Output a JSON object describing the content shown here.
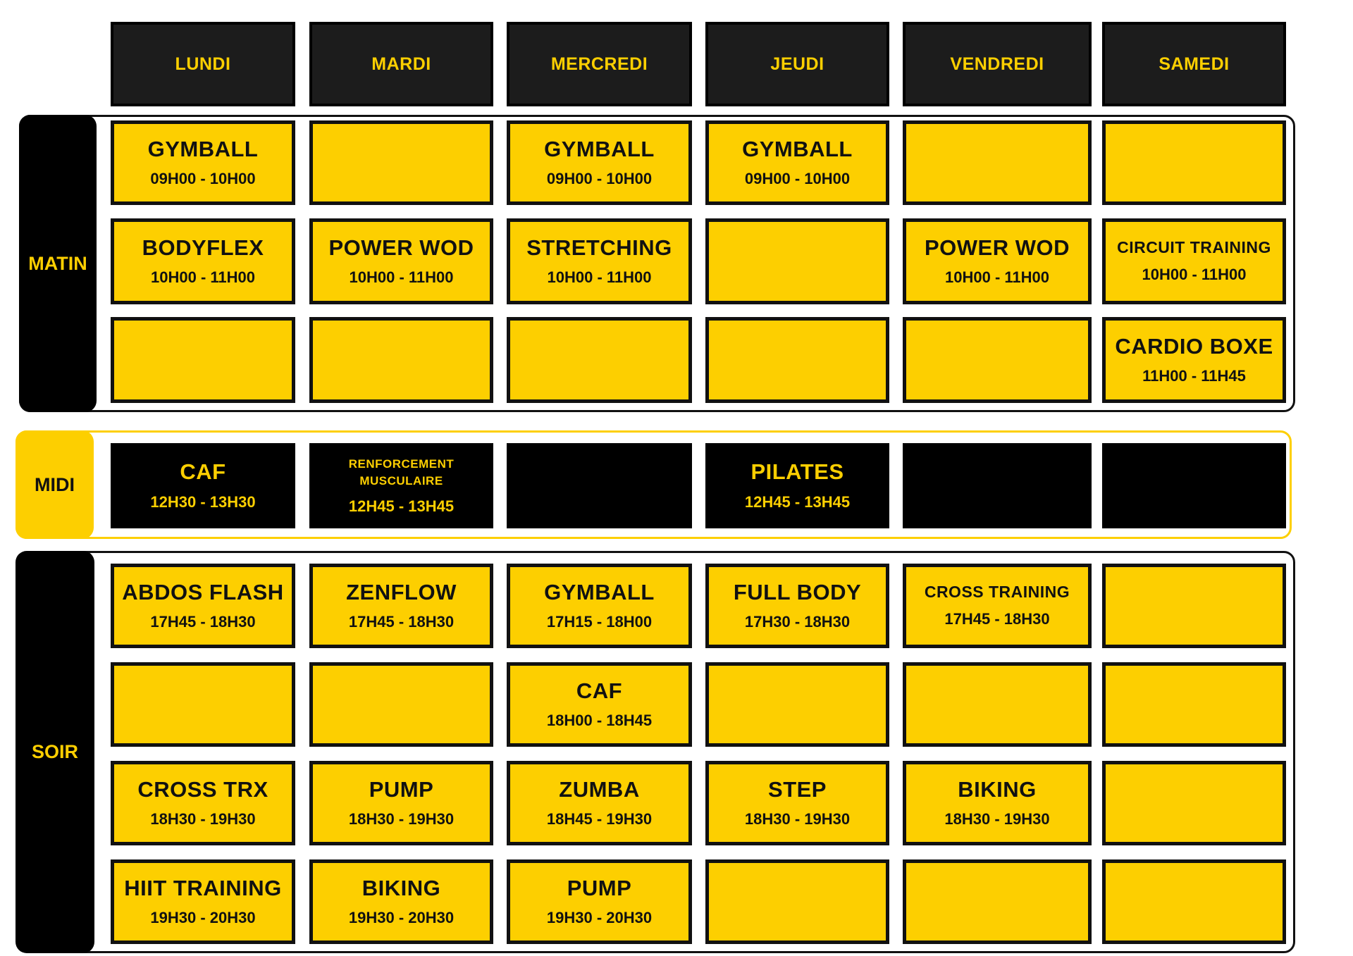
{
  "colors": {
    "yellow": "#fdcf00",
    "black": "#000000",
    "header": "#1c1c1c"
  },
  "days": [
    "LUNDI",
    "MARDI",
    "MERCREDI",
    "JEUDI",
    "VENDREDI",
    "SAMEDI"
  ],
  "sections": [
    {
      "label": "MATIN",
      "style": "dark",
      "rows": [
        [
          {
            "title": "GYMBALL",
            "time": "09H00 - 10H00"
          },
          null,
          {
            "title": "GYMBALL",
            "time": "09H00 - 10H00"
          },
          {
            "title": "GYMBALL",
            "time": "09H00 - 10H00"
          },
          null,
          null
        ],
        [
          {
            "title": "BODYFLEX",
            "time": "10H00 - 11H00"
          },
          {
            "title": "POWER WOD",
            "time": "10H00 - 11H00"
          },
          {
            "title": "STRETCHING",
            "time": "10H00 - 11H00"
          },
          null,
          {
            "title": "POWER WOD",
            "time": "10H00 - 11H00"
          },
          {
            "title": "CIRCUIT TRAINING",
            "time": "10H00 - 11H00"
          }
        ],
        [
          null,
          null,
          null,
          null,
          null,
          {
            "title": "CARDIO BOXE",
            "time": "11H00 - 11H45"
          }
        ]
      ]
    },
    {
      "label": "MIDI",
      "style": "light",
      "rows": [
        [
          {
            "title": "CAF",
            "time": "12H30 - 13H30"
          },
          {
            "title": "RENFORCEMENT MUSCULAIRE",
            "time": "12H45 - 13H45"
          },
          null,
          {
            "title": "PILATES",
            "time": "12H45 - 13H45"
          },
          null,
          null
        ]
      ]
    },
    {
      "label": "SOIR",
      "style": "dark",
      "rows": [
        [
          {
            "title": "ABDOS FLASH",
            "time": "17H45 - 18H30"
          },
          {
            "title": "ZENFLOW",
            "time": "17H45 - 18H30"
          },
          {
            "title": "GYMBALL",
            "time": "17H15 - 18H00"
          },
          {
            "title": "FULL BODY",
            "time": "17H30 - 18H30"
          },
          {
            "title": "CROSS TRAINING",
            "time": "17H45 - 18H30"
          },
          null
        ],
        [
          null,
          null,
          {
            "title": "CAF",
            "time": "18H00 - 18H45"
          },
          null,
          null,
          null
        ],
        [
          {
            "title": "CROSS TRX",
            "time": "18H30 - 19H30"
          },
          {
            "title": "PUMP",
            "time": "18H30 - 19H30"
          },
          {
            "title": "ZUMBA",
            "time": "18H45 - 19H30"
          },
          {
            "title": "STEP",
            "time": "18H30 - 19H30"
          },
          {
            "title": "BIKING",
            "time": "18H30 - 19H30"
          },
          null
        ],
        [
          {
            "title": "HIIT TRAINING",
            "time": "19H30 - 20H30"
          },
          {
            "title": "BIKING",
            "time": "19H30 - 20H30"
          },
          {
            "title": "PUMP",
            "time": "19H30 - 20H30"
          },
          null,
          null,
          null
        ]
      ]
    }
  ]
}
